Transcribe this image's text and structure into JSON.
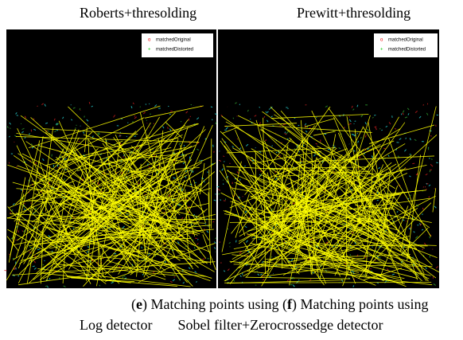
{
  "panels": [
    {
      "title": "Roberts+thresolding",
      "legend": [
        "matchedOriginal",
        "matchedDistorted"
      ]
    },
    {
      "title": "Prewitt+thresolding",
      "legend": [
        "matchedOriginal",
        "matchedDistorted"
      ]
    }
  ],
  "captions": [
    {
      "open": "(",
      "letter": "e",
      "close": ")",
      "line1": "Matching points using",
      "line2": "Log detector"
    },
    {
      "open": "(",
      "letter": "f",
      "close": ")",
      "line1": "Matching points using",
      "line2": "Sobel filter+Zerocrossedge detector"
    }
  ]
}
